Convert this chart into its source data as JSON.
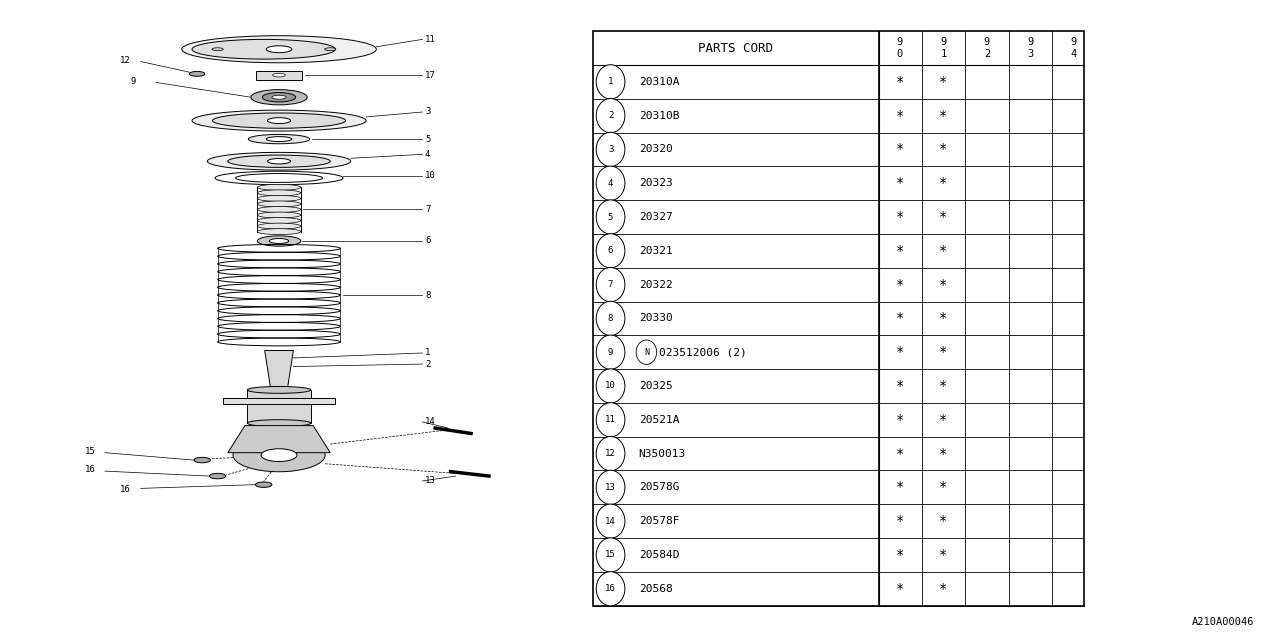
{
  "bg_color": "#ffffff",
  "doc_number": "A210A00046",
  "table": {
    "header_col1": "PARTS CORD",
    "year_cols": [
      "9\n0",
      "9\n1",
      "9\n2",
      "9\n3",
      "9\n4"
    ],
    "rows": [
      {
        "num": "1",
        "part": "20310A",
        "years": [
          true,
          true,
          false,
          false,
          false
        ]
      },
      {
        "num": "2",
        "part": "20310B",
        "years": [
          true,
          true,
          false,
          false,
          false
        ]
      },
      {
        "num": "3",
        "part": "20320",
        "years": [
          true,
          true,
          false,
          false,
          false
        ]
      },
      {
        "num": "4",
        "part": "20323",
        "years": [
          true,
          true,
          false,
          false,
          false
        ]
      },
      {
        "num": "5",
        "part": "20327",
        "years": [
          true,
          true,
          false,
          false,
          false
        ]
      },
      {
        "num": "6",
        "part": "20321",
        "years": [
          true,
          true,
          false,
          false,
          false
        ]
      },
      {
        "num": "7",
        "part": "20322",
        "years": [
          true,
          true,
          false,
          false,
          false
        ]
      },
      {
        "num": "8",
        "part": "20330",
        "years": [
          true,
          true,
          false,
          false,
          false
        ]
      },
      {
        "num": "9",
        "part": "N023512006 (2)",
        "years": [
          true,
          true,
          false,
          false,
          false
        ]
      },
      {
        "num": "10",
        "part": "20325",
        "years": [
          true,
          true,
          false,
          false,
          false
        ]
      },
      {
        "num": "11",
        "part": "20521A",
        "years": [
          true,
          true,
          false,
          false,
          false
        ]
      },
      {
        "num": "12",
        "part": "N350013",
        "years": [
          true,
          true,
          false,
          false,
          false
        ]
      },
      {
        "num": "13",
        "part": "20578G",
        "years": [
          true,
          true,
          false,
          false,
          false
        ]
      },
      {
        "num": "14",
        "part": "20578F",
        "years": [
          true,
          true,
          false,
          false,
          false
        ]
      },
      {
        "num": "15",
        "part": "20584D",
        "years": [
          true,
          true,
          false,
          false,
          false
        ]
      },
      {
        "num": "16",
        "part": "20568",
        "years": [
          true,
          true,
          false,
          false,
          false
        ]
      }
    ]
  },
  "line_color": "#000000",
  "text_color": "#000000"
}
